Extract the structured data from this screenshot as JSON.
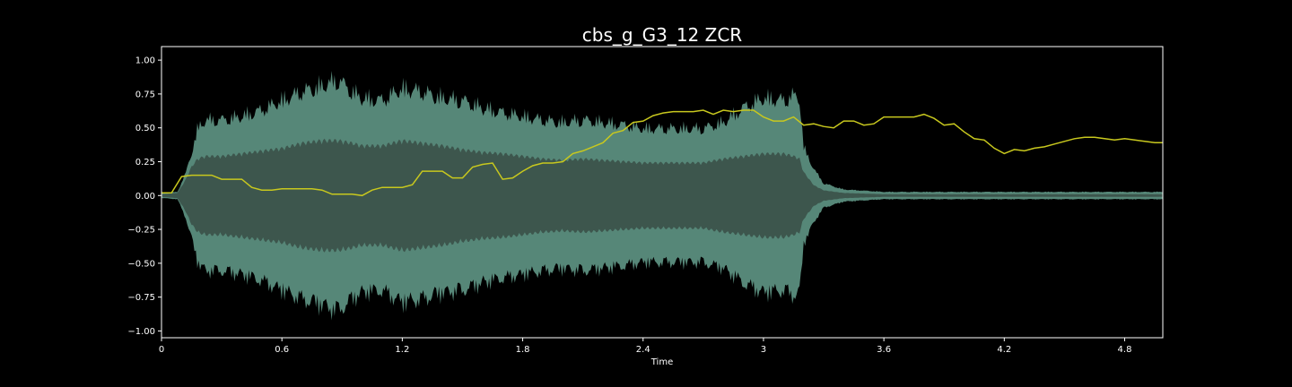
{
  "chart_data": {
    "type": "line",
    "title": "cbs_g_G3_12 ZCR",
    "xlabel": "Time",
    "ylabel": "",
    "xlim": [
      0,
      4.99
    ],
    "ylim": [
      -1.05,
      1.1
    ],
    "x_ticks": [
      0,
      0.6,
      1.2,
      1.8,
      2.4,
      3,
      3.6,
      4.2,
      4.8
    ],
    "x_tick_labels": [
      "0",
      "0.6",
      "1.2",
      "1.8",
      "2.4",
      "3",
      "3.6",
      "4.2",
      "4.8"
    ],
    "y_ticks": [
      1.0,
      0.75,
      0.5,
      0.25,
      0.0,
      -0.25,
      -0.5,
      -0.75,
      -1.0
    ],
    "y_tick_labels": [
      "1.00",
      "0.75",
      "0.50",
      "0.25",
      "0.00",
      "−0.25",
      "−0.50",
      "−0.75",
      "−1.00"
    ],
    "grid": false,
    "colors": {
      "background": "#000000",
      "axes": "#ffffff",
      "waveform_body": "#3d564d",
      "waveform_peaks": "#5f9685",
      "zcr_line": "#c8c81e",
      "text": "#ffffff"
    },
    "waveform_envelope": {
      "t": [
        0.0,
        0.08,
        0.12,
        0.15,
        0.18,
        0.22,
        0.3,
        0.4,
        0.5,
        0.6,
        0.7,
        0.8,
        0.88,
        0.95,
        1.0,
        1.1,
        1.2,
        1.3,
        1.4,
        1.5,
        1.6,
        1.7,
        1.8,
        1.9,
        2.0,
        2.1,
        2.2,
        2.3,
        2.4,
        2.5,
        2.6,
        2.7,
        2.8,
        2.9,
        3.0,
        3.1,
        3.15,
        3.18,
        3.2,
        3.25,
        3.3,
        3.4,
        3.5,
        3.6,
        3.7,
        3.8,
        4.0,
        4.2,
        4.4,
        4.6,
        4.8,
        4.99
      ],
      "peak": [
        0.02,
        0.03,
        0.18,
        0.35,
        0.55,
        0.62,
        0.62,
        0.65,
        0.7,
        0.78,
        0.85,
        0.9,
        0.95,
        0.85,
        0.8,
        0.78,
        0.88,
        0.85,
        0.8,
        0.78,
        0.72,
        0.68,
        0.65,
        0.62,
        0.6,
        0.62,
        0.6,
        0.58,
        0.55,
        0.55,
        0.55,
        0.55,
        0.6,
        0.72,
        0.8,
        0.78,
        0.82,
        0.8,
        0.4,
        0.22,
        0.1,
        0.05,
        0.04,
        0.03,
        0.03,
        0.03,
        0.03,
        0.03,
        0.03,
        0.03,
        0.03,
        0.03
      ],
      "body": [
        0.01,
        0.02,
        0.12,
        0.22,
        0.28,
        0.3,
        0.3,
        0.32,
        0.34,
        0.36,
        0.4,
        0.42,
        0.42,
        0.4,
        0.38,
        0.38,
        0.42,
        0.4,
        0.38,
        0.35,
        0.33,
        0.32,
        0.3,
        0.28,
        0.27,
        0.28,
        0.27,
        0.26,
        0.25,
        0.25,
        0.25,
        0.25,
        0.28,
        0.3,
        0.32,
        0.32,
        0.3,
        0.28,
        0.18,
        0.08,
        0.04,
        0.02,
        0.015,
        0.01,
        0.01,
        0.01,
        0.01,
        0.01,
        0.01,
        0.01,
        0.01,
        0.01
      ]
    },
    "series": [
      {
        "x": [
          0.0,
          0.05,
          0.1,
          0.15,
          0.2,
          0.25,
          0.3,
          0.35,
          0.4,
          0.45,
          0.5,
          0.55,
          0.6,
          0.65,
          0.7,
          0.75,
          0.8,
          0.85,
          0.9,
          0.95,
          1.0,
          1.05,
          1.1,
          1.15,
          1.2,
          1.25,
          1.3,
          1.35,
          1.4,
          1.45,
          1.5,
          1.55,
          1.6,
          1.65,
          1.7,
          1.75,
          1.8,
          1.85,
          1.9,
          1.95,
          2.0,
          2.05,
          2.1,
          2.15,
          2.2,
          2.25,
          2.3,
          2.35,
          2.4,
          2.45,
          2.5,
          2.55,
          2.6,
          2.65,
          2.7,
          2.75,
          2.8,
          2.85,
          2.9,
          2.95,
          3.0,
          3.05,
          3.1,
          3.15,
          3.2,
          3.25,
          3.3,
          3.35,
          3.4,
          3.45,
          3.5,
          3.55,
          3.6,
          3.65,
          3.7,
          3.75,
          3.8,
          3.85,
          3.9,
          3.95,
          4.0,
          4.05,
          4.1,
          4.15,
          4.2,
          4.25,
          4.3,
          4.35,
          4.4,
          4.45,
          4.5,
          4.55,
          4.6,
          4.65,
          4.7,
          4.75,
          4.8,
          4.85,
          4.9,
          4.95,
          4.99
        ],
        "values": [
          0.02,
          0.02,
          0.14,
          0.15,
          0.15,
          0.15,
          0.12,
          0.12,
          0.12,
          0.06,
          0.04,
          0.04,
          0.05,
          0.05,
          0.05,
          0.05,
          0.04,
          0.01,
          0.01,
          0.01,
          0.0,
          0.04,
          0.06,
          0.06,
          0.06,
          0.08,
          0.18,
          0.18,
          0.18,
          0.13,
          0.13,
          0.21,
          0.23,
          0.24,
          0.12,
          0.13,
          0.18,
          0.22,
          0.24,
          0.24,
          0.25,
          0.31,
          0.33,
          0.36,
          0.39,
          0.46,
          0.48,
          0.54,
          0.55,
          0.59,
          0.61,
          0.62,
          0.62,
          0.62,
          0.63,
          0.6,
          0.63,
          0.62,
          0.63,
          0.63,
          0.58,
          0.55,
          0.55,
          0.58,
          0.52,
          0.53,
          0.51,
          0.5,
          0.55,
          0.55,
          0.52,
          0.53,
          0.58,
          0.58,
          0.58,
          0.58,
          0.6,
          0.57,
          0.52,
          0.53,
          0.47,
          0.42,
          0.41,
          0.35,
          0.31,
          0.34,
          0.33,
          0.35,
          0.36,
          0.38,
          0.4,
          0.42,
          0.43,
          0.43,
          0.42,
          0.41,
          0.42,
          0.41,
          0.4,
          0.39,
          0.39
        ]
      }
    ]
  }
}
